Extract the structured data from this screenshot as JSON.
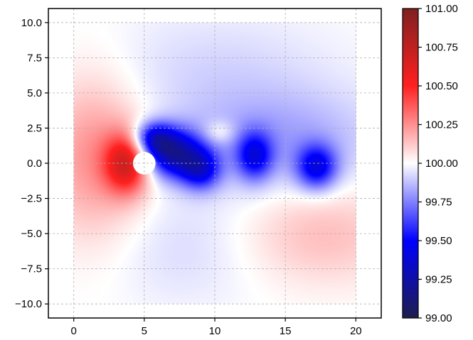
{
  "chart_data": {
    "type": "heatmap",
    "title": "",
    "xlabel": "",
    "ylabel": "",
    "xlim": [
      -1.8,
      21.8
    ],
    "ylim": [
      -11.0,
      11.0
    ],
    "xticks": [
      0,
      5,
      10,
      15,
      20
    ],
    "xtick_labels": [
      "0",
      "5",
      "10",
      "15",
      "20"
    ],
    "yticks": [
      10.0,
      7.5,
      5.0,
      2.5,
      0.0,
      -2.5,
      -5.0,
      -7.5,
      -10.0
    ],
    "ytick_labels": [
      "10.0",
      "7.5",
      "5.0",
      "2.5",
      "0.0",
      "−2.5",
      "−5.0",
      "−7.5",
      "−10.0"
    ],
    "grid": true,
    "domain": {
      "x": [
        0,
        20
      ],
      "y": [
        -10,
        10
      ]
    },
    "obstacle": {
      "shape": "circle",
      "cx": 5,
      "cy": 0,
      "r": 0.8
    },
    "colormap": "seismic",
    "colorbar": {
      "min": 99.0,
      "max": 101.0,
      "ticks": [
        101.0,
        100.75,
        100.5,
        100.25,
        100.0,
        99.75,
        99.5,
        99.25,
        99.0
      ],
      "tick_labels": [
        "101.00",
        "100.75",
        "100.50",
        "100.25",
        "100.00",
        "99.75",
        "99.50",
        "99.25",
        "99.00"
      ]
    },
    "features": [
      {
        "kind": "high",
        "x": 3.8,
        "y": 0.0,
        "value": 100.6,
        "sx": 1.1,
        "sy": 1.5
      },
      {
        "kind": "high",
        "x": 1.5,
        "y": 0.5,
        "value": 100.25,
        "sx": 2.5,
        "sy": 4.0
      },
      {
        "kind": "high",
        "x": 10.3,
        "y": 2.2,
        "value": 100.15,
        "sx": 0.8,
        "sy": 0.6
      },
      {
        "kind": "high",
        "x": 17.5,
        "y": -5.0,
        "value": 100.15,
        "sx": 4.0,
        "sy": 2.5
      },
      {
        "kind": "low",
        "x": 7.0,
        "y": 0.7,
        "value": 99.3,
        "sx": 1.5,
        "sy": 1.2
      },
      {
        "kind": "low",
        "x": 5.6,
        "y": 1.8,
        "value": 99.55,
        "sx": 1.0,
        "sy": 0.8
      },
      {
        "kind": "low",
        "x": 9.0,
        "y": -0.5,
        "value": 99.55,
        "sx": 1.0,
        "sy": 1.0
      },
      {
        "kind": "low",
        "x": 12.8,
        "y": 0.5,
        "value": 99.55,
        "sx": 0.9,
        "sy": 1.2
      },
      {
        "kind": "low",
        "x": 17.2,
        "y": -0.3,
        "value": 99.5,
        "sx": 1.0,
        "sy": 1.1
      },
      {
        "kind": "low",
        "x": 14.5,
        "y": 1.5,
        "value": 99.82,
        "sx": 5.0,
        "sy": 2.5
      },
      {
        "kind": "low",
        "x": 10.0,
        "y": 6.5,
        "value": 99.92,
        "sx": 6.0,
        "sy": 3.0
      },
      {
        "kind": "low",
        "x": 8.0,
        "y": -6.0,
        "value": 99.93,
        "sx": 4.0,
        "sy": 3.0
      }
    ]
  }
}
